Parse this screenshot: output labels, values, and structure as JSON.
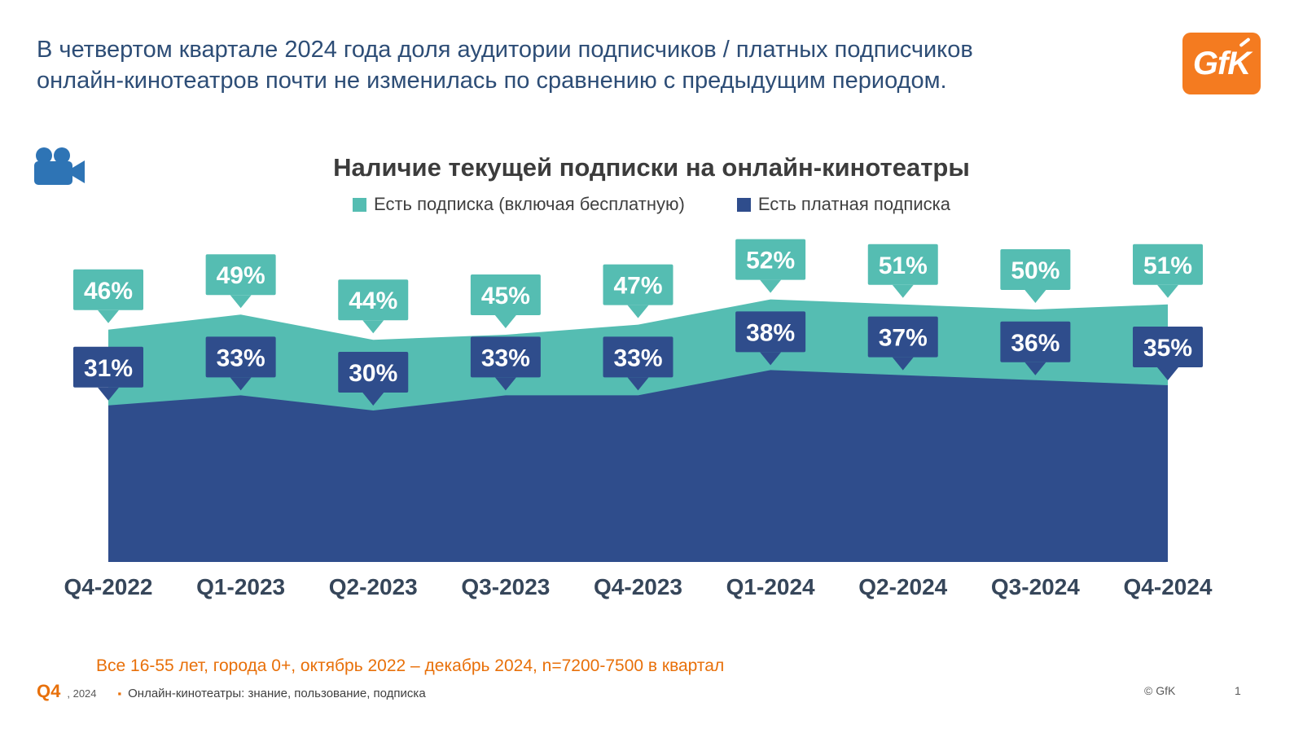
{
  "header": {
    "text": "В четвертом квартале 2024 года доля аудитории подписчиков / платных подписчиков онлайн-кинотеатров почти не изменилась по сравнению с предыдущим периодом."
  },
  "logo": {
    "text": "GfK"
  },
  "chart": {
    "title": "Наличие текущей подписки на онлайн-кинотеатры"
  },
  "chart_data": {
    "type": "area",
    "categories": [
      "Q4-2022",
      "Q1-2023",
      "Q2-2023",
      "Q3-2023",
      "Q4-2023",
      "Q1-2024",
      "Q2-2024",
      "Q3-2024",
      "Q4-2024"
    ],
    "series": [
      {
        "name": "Есть подписка (включая бесплатную)",
        "color": "#55BDB2",
        "values": [
          46,
          49,
          44,
          45,
          47,
          52,
          51,
          50,
          51
        ]
      },
      {
        "name": "Есть платная подписка",
        "color": "#2F4D8C",
        "values": [
          31,
          33,
          30,
          33,
          33,
          38,
          37,
          36,
          35
        ]
      }
    ],
    "ylim": [
      0,
      110
    ],
    "label_format": "{v}%",
    "legend_position": "top",
    "grid": false
  },
  "icons": {
    "camera": "movie-camera-icon"
  },
  "colors": {
    "accent_orange": "#F47B20",
    "footnote_orange": "#E8700A",
    "header_text": "#2D4D76"
  },
  "footer": {
    "note": "Все 16-55 лет, города 0+, октябрь 2022 – декабрь 2024, n=7200-7500 в квартал",
    "quarter": "Q4",
    "year": ", 2024",
    "bullet": "▪",
    "source": "Онлайн-кинотеатры: знание, пользование, подписка",
    "copyright": "© GfK",
    "page": "1"
  }
}
